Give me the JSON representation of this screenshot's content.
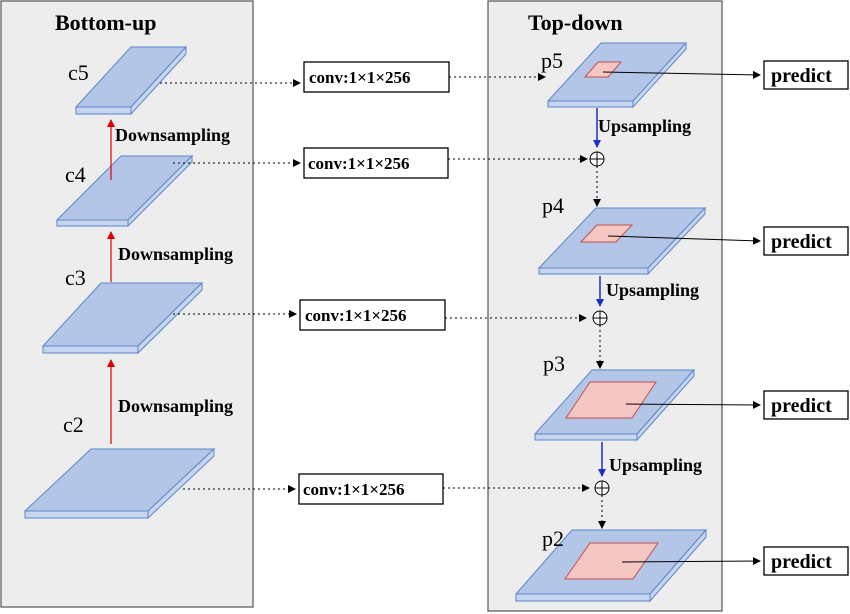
{
  "bottom_up": {
    "title": "Bottom-up",
    "levels": [
      "c5",
      "c4",
      "c3",
      "c2"
    ],
    "downsampling": [
      "Downsampling",
      "Downsampling",
      "Downsampling"
    ]
  },
  "top_down": {
    "title": "Top-down",
    "levels": [
      "p5",
      "p4",
      "p3",
      "p2"
    ],
    "upsampling": [
      "Upsampling",
      "Upsampling",
      "Upsampling"
    ]
  },
  "conv_boxes": [
    "conv:1×1×256",
    "conv:1×1×256",
    "conv:1×1×256",
    "conv:1×1×256"
  ],
  "predict_boxes": [
    "predict",
    "predict",
    "predict",
    "predict"
  ],
  "colors": {
    "panel": "#ededed",
    "slab": "#b4c6e7",
    "slab_edge": "#5b86c9",
    "inner": "#f4c7c3",
    "inner_edge": "#c0504d",
    "downsample_arrow": "#e00000",
    "upsample_arrow": "#1f2fbf"
  }
}
